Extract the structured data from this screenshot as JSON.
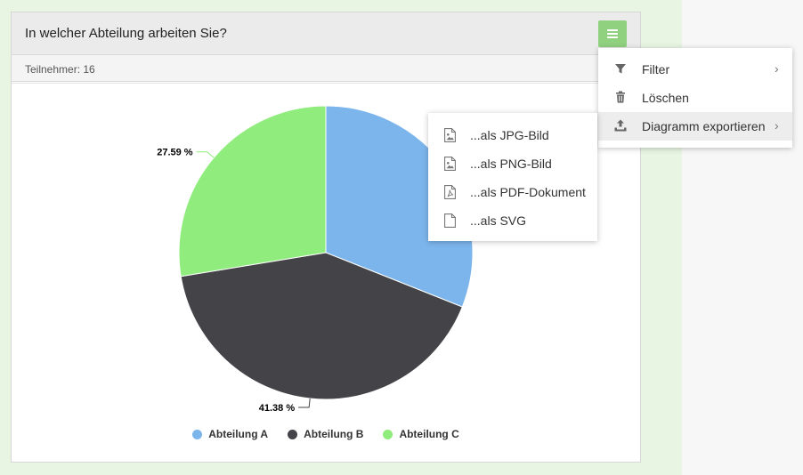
{
  "card": {
    "question": "In welcher Abteilung arbeiten Sie?",
    "participants": "Teilnehmer: 16"
  },
  "menu": {
    "items": [
      {
        "label": "Filter",
        "icon": "filter-icon",
        "has_submenu": true
      },
      {
        "label": "Löschen",
        "icon": "trash-icon",
        "has_submenu": false
      },
      {
        "label": "Diagramm exportieren",
        "icon": "export-icon",
        "has_submenu": true
      }
    ]
  },
  "export_submenu": {
    "items": [
      {
        "label": "...als JPG-Bild",
        "icon": "image-file-icon"
      },
      {
        "label": "...als PNG-Bild",
        "icon": "image-file-icon"
      },
      {
        "label": "...als PDF-Dokument",
        "icon": "pdf-file-icon"
      },
      {
        "label": "...als SVG",
        "icon": "file-icon"
      }
    ]
  },
  "colors": {
    "accent_button": "#8fd17f",
    "series": [
      "#7cb5ec",
      "#434348",
      "#90ed7d"
    ]
  },
  "chart_data": {
    "type": "pie",
    "categories": [
      "Abteilung A",
      "Abteilung B",
      "Abteilung C"
    ],
    "values": [
      31.03,
      41.38,
      27.59
    ],
    "data_labels": [
      "",
      "41.38 %",
      "27.59 %"
    ],
    "legend_placement": "bottom"
  }
}
